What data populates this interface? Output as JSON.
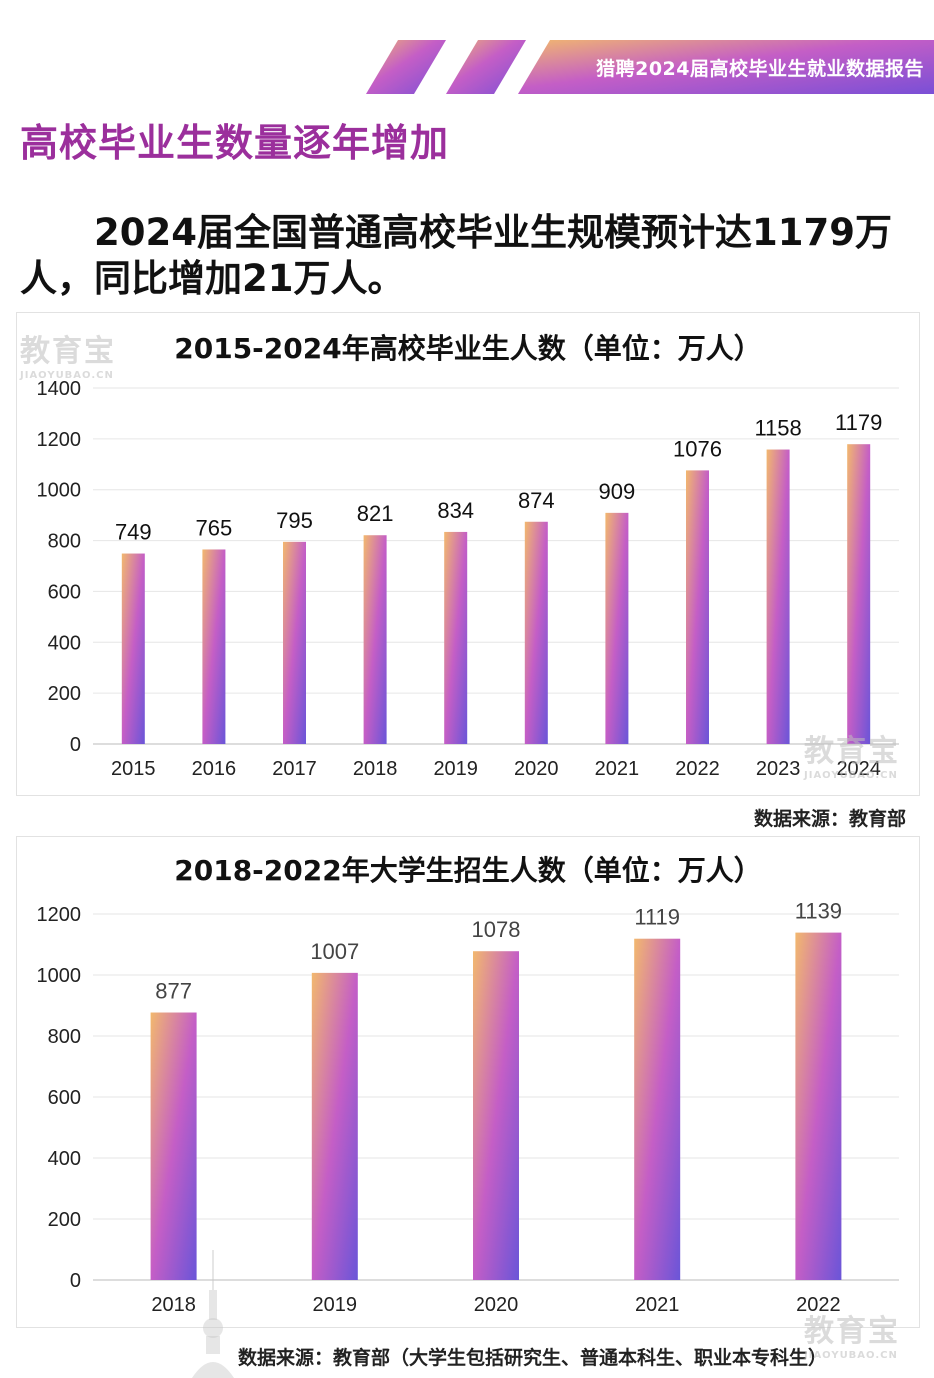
{
  "header": {
    "banner_text": "猎聘2024届高校毕业生就业数据报告",
    "section_title": "高校毕业生数量逐年增加",
    "intro_text": "　　2024届全国普通高校毕业生规模预计达1179万人，同比增加21万人。"
  },
  "watermark": {
    "text": "教育宝",
    "sub": "JIAOYUBAO.CN"
  },
  "colors": {
    "title_purple": "#9b2f9c",
    "bar_top": "#f2b86e",
    "bar_mid": "#c45ec6",
    "bar_bottom": "#6a55d8",
    "gridline": "#e6e6e6"
  },
  "chart_data": [
    {
      "type": "bar",
      "title": "2015-2024年高校毕业生人数（单位：万人）",
      "categories": [
        "2015",
        "2016",
        "2017",
        "2018",
        "2019",
        "2020",
        "2021",
        "2022",
        "2023",
        "2024"
      ],
      "values": [
        749,
        765,
        795,
        821,
        834,
        874,
        909,
        1076,
        1158,
        1179
      ],
      "yticks": [
        "0",
        "200",
        "400",
        "600",
        "800",
        "1000",
        "1200",
        "1400"
      ],
      "ylim": [
        0,
        1400
      ],
      "grid": true,
      "source": "数据来源：教育部"
    },
    {
      "type": "bar",
      "title": "2018-2022年大学生招生人数（单位：万人）",
      "categories": [
        "2018",
        "2019",
        "2020",
        "2021",
        "2022"
      ],
      "values": [
        877,
        1007,
        1078,
        1119,
        1139
      ],
      "yticks": [
        "0",
        "200",
        "400",
        "600",
        "800",
        "1000",
        "1200"
      ],
      "ylim": [
        0,
        1200
      ],
      "grid": true,
      "source": "数据来源：教育部（大学生包括研究生、普通本科生、职业本专科生）"
    }
  ]
}
